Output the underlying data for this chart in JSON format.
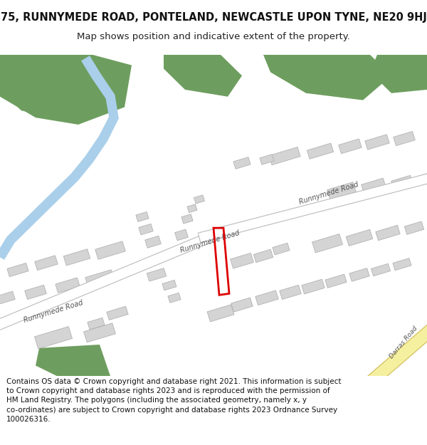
{
  "title": "75, RUNNYMEDE ROAD, PONTELAND, NEWCASTLE UPON TYNE, NE20 9HJ",
  "subtitle": "Map shows position and indicative extent of the property.",
  "footer": "Contains OS data © Crown copyright and database right 2021. This information is subject to Crown copyright and database rights 2023 and is reproduced with the permission of HM Land Registry. The polygons (including the associated geometry, namely x, y co-ordinates) are subject to Crown copyright and database rights 2023 Ordnance Survey 100026316.",
  "bg_color": "#ffffff",
  "building_color": "#d4d4d4",
  "building_stroke": "#aaaaaa",
  "green_color": "#6e9e5f",
  "water_color": "#aacfea",
  "road_yellow_fill": "#f5f0a0",
  "road_yellow_stroke": "#d4c060",
  "plot_color": "#dd0000",
  "title_fontsize": 10.5,
  "subtitle_fontsize": 9.5,
  "footer_fontsize": 7.5,
  "road_label_color": "#555555",
  "road_label_size": 7.0
}
